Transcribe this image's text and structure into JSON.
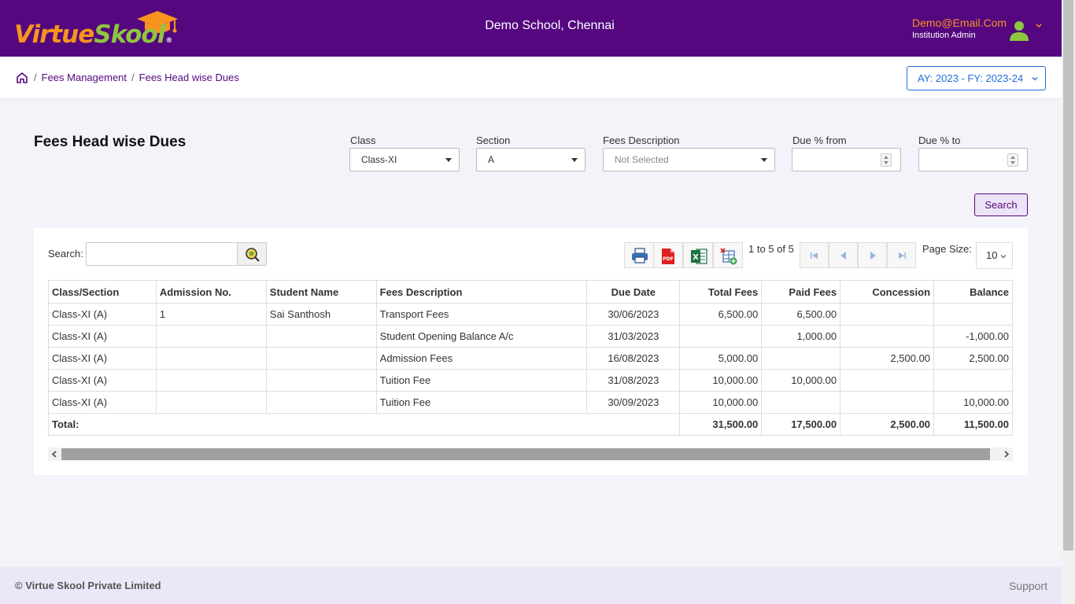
{
  "app": {
    "logo_word": [
      "Virtue",
      "Skool"
    ],
    "logo_reg": "®",
    "school_name": "Demo School, Chennai",
    "user_email": "Demo@Email.Com",
    "user_role": "Institution Admin"
  },
  "breadcrumb": {
    "items": [
      "Fees Management",
      "Fees Head wise Dues"
    ],
    "sep": "/"
  },
  "academic_year": "AY: 2023 - FY: 2023-24",
  "page": {
    "title": "Fees Head wise Dues"
  },
  "filters": {
    "class_label": "Class",
    "class_value": "Class-XI",
    "section_label": "Section",
    "section_value": "A",
    "fees_desc_label": "Fees Description",
    "fees_desc_value": "Not Selected",
    "due_from_label": "Due % from",
    "due_to_label": "Due % to",
    "search_button": "Search"
  },
  "grid": {
    "search_label": "Search:",
    "pager_text": "1 to 5 of 5",
    "page_size_label": "Page Size:",
    "page_size": "10",
    "columns": [
      "Class/Section",
      "Admission No.",
      "Student Name",
      "Fees Description",
      "Due Date",
      "Total Fees",
      "Paid Fees",
      "Concession",
      "Balance"
    ],
    "rows": [
      [
        "Class-XI (A)",
        "1",
        "Sai Santhosh",
        "Transport Fees",
        "30/06/2023",
        "6,500.00",
        "6,500.00",
        "",
        ""
      ],
      [
        "Class-XI (A)",
        "",
        "",
        "Student Opening Balance A/c",
        "31/03/2023",
        "",
        "1,000.00",
        "",
        "-1,000.00"
      ],
      [
        "Class-XI (A)",
        "",
        "",
        "Admission Fees",
        "16/08/2023",
        "5,000.00",
        "",
        "2,500.00",
        "2,500.00"
      ],
      [
        "Class-XI (A)",
        "",
        "",
        "Tuition Fee",
        "31/08/2023",
        "10,000.00",
        "10,000.00",
        "",
        ""
      ],
      [
        "Class-XI (A)",
        "",
        "",
        "Tuition Fee",
        "30/09/2023",
        "10,000.00",
        "",
        "",
        "10,000.00"
      ]
    ],
    "total": {
      "label": "Total:",
      "total_fees": "31,500.00",
      "paid_fees": "17,500.00",
      "concession": "2,500.00",
      "balance": "11,500.00"
    }
  },
  "footer": {
    "copyright": "© Virtue Skool Private Limited",
    "support": "Support"
  },
  "colors": {
    "brand_purple": "#54077f",
    "accent_orange": "#f7941d",
    "accent_green": "#8dc63f",
    "link_blue": "#1e6fd9"
  },
  "icons": [
    "graduation-cap-icon",
    "user-avatar-icon",
    "home-icon",
    "chevron-down-icon",
    "search-icon",
    "print-icon",
    "pdf-icon",
    "excel-icon",
    "export-grid-icon",
    "first-page-icon",
    "prev-page-icon",
    "next-page-icon",
    "last-page-icon"
  ]
}
